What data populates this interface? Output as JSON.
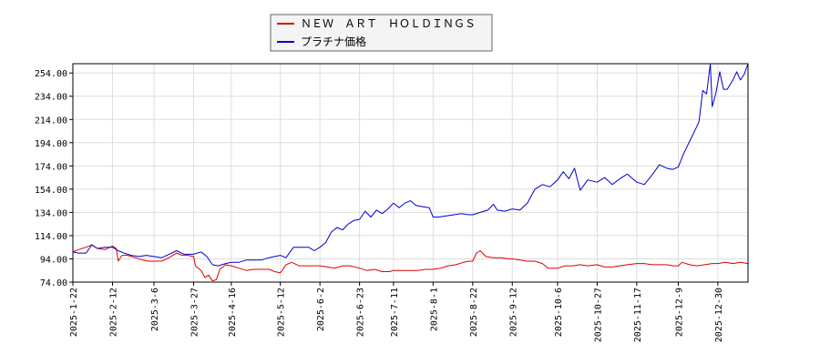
{
  "colors": {
    "series_red": "#dd0000",
    "series_blue": "#0000cc",
    "grid": "#dddddd",
    "axis": "#000000"
  },
  "chart_data": {
    "type": "line",
    "title": "",
    "xlabel": "",
    "ylabel": "",
    "ylim": [
      74,
      262
    ],
    "grid": true,
    "legend": "top-center",
    "y_ticks": [
      "74.00",
      "94.00",
      "114.00",
      "134.00",
      "154.00",
      "174.00",
      "194.00",
      "214.00",
      "234.00",
      "254.00"
    ],
    "x_ticks": [
      "2025-1-22",
      "2025-2-12",
      "2025-3-6",
      "2025-3-27",
      "2025-4-16",
      "2025-5-12",
      "2025-6-2",
      "2025-6-23",
      "2025-7-11",
      "2025-8-1",
      "2025-8-22",
      "2025-9-12",
      "2025-10-6",
      "2025-10-27",
      "2025-11-17",
      "2025-12-9",
      "2025-12-30"
    ],
    "x_range": [
      "2025-01-22",
      "2026-01-15"
    ],
    "series": [
      {
        "name": "ＮＥＷ　ＡＲＴ　ＨＯＬＤＩＮＧＳ",
        "color": "#dd0000",
        "points": [
          [
            "2025-01-22",
            100
          ],
          [
            "2025-01-25",
            102
          ],
          [
            "2025-01-29",
            104
          ],
          [
            "2025-02-01",
            106
          ],
          [
            "2025-02-04",
            103
          ],
          [
            "2025-02-08",
            102
          ],
          [
            "2025-02-12",
            105
          ],
          [
            "2025-02-14",
            103
          ],
          [
            "2025-02-15",
            92
          ],
          [
            "2025-02-17",
            97
          ],
          [
            "2025-02-20",
            97
          ],
          [
            "2025-02-24",
            95
          ],
          [
            "2025-02-28",
            93
          ],
          [
            "2025-03-03",
            92
          ],
          [
            "2025-03-06",
            92
          ],
          [
            "2025-03-10",
            92
          ],
          [
            "2025-03-14",
            95
          ],
          [
            "2025-03-18",
            99
          ],
          [
            "2025-03-21",
            97
          ],
          [
            "2025-03-24",
            97
          ],
          [
            "2025-03-27",
            96
          ],
          [
            "2025-03-28",
            88
          ],
          [
            "2025-03-31",
            84
          ],
          [
            "2025-04-02",
            78
          ],
          [
            "2025-04-04",
            80
          ],
          [
            "2025-04-06",
            75
          ],
          [
            "2025-04-08",
            76
          ],
          [
            "2025-04-10",
            85
          ],
          [
            "2025-04-13",
            89
          ],
          [
            "2025-04-16",
            88
          ],
          [
            "2025-04-20",
            86
          ],
          [
            "2025-04-24",
            84
          ],
          [
            "2025-04-28",
            85
          ],
          [
            "2025-05-02",
            85
          ],
          [
            "2025-05-06",
            85
          ],
          [
            "2025-05-09",
            83
          ],
          [
            "2025-05-12",
            82
          ],
          [
            "2025-05-15",
            89
          ],
          [
            "2025-05-18",
            91
          ],
          [
            "2025-05-22",
            88
          ],
          [
            "2025-05-26",
            88
          ],
          [
            "2025-05-30",
            88
          ],
          [
            "2025-06-02",
            88
          ],
          [
            "2025-06-06",
            87
          ],
          [
            "2025-06-10",
            86
          ],
          [
            "2025-06-14",
            88
          ],
          [
            "2025-06-18",
            88
          ],
          [
            "2025-06-23",
            86
          ],
          [
            "2025-06-27",
            84
          ],
          [
            "2025-07-01",
            85
          ],
          [
            "2025-07-05",
            83
          ],
          [
            "2025-07-09",
            83
          ],
          [
            "2025-07-11",
            84
          ],
          [
            "2025-07-15",
            84
          ],
          [
            "2025-07-20",
            84
          ],
          [
            "2025-07-24",
            84
          ],
          [
            "2025-07-28",
            85
          ],
          [
            "2025-08-01",
            85
          ],
          [
            "2025-08-05",
            86
          ],
          [
            "2025-08-09",
            88
          ],
          [
            "2025-08-13",
            89
          ],
          [
            "2025-08-17",
            91
          ],
          [
            "2025-08-20",
            92
          ],
          [
            "2025-08-22",
            92
          ],
          [
            "2025-08-24",
            99
          ],
          [
            "2025-08-26",
            101
          ],
          [
            "2025-08-29",
            96
          ],
          [
            "2025-09-02",
            95
          ],
          [
            "2025-09-06",
            95
          ],
          [
            "2025-09-10",
            94
          ],
          [
            "2025-09-12",
            94
          ],
          [
            "2025-09-16",
            93
          ],
          [
            "2025-09-20",
            92
          ],
          [
            "2025-09-24",
            92
          ],
          [
            "2025-09-28",
            90
          ],
          [
            "2025-10-01",
            86
          ],
          [
            "2025-10-06",
            86
          ],
          [
            "2025-10-10",
            88
          ],
          [
            "2025-10-14",
            88
          ],
          [
            "2025-10-18",
            89
          ],
          [
            "2025-10-22",
            88
          ],
          [
            "2025-10-27",
            89
          ],
          [
            "2025-10-31",
            87
          ],
          [
            "2025-11-04",
            87
          ],
          [
            "2025-11-08",
            88
          ],
          [
            "2025-11-12",
            89
          ],
          [
            "2025-11-17",
            90
          ],
          [
            "2025-11-21",
            90
          ],
          [
            "2025-11-25",
            89
          ],
          [
            "2025-11-29",
            89
          ],
          [
            "2025-12-03",
            89
          ],
          [
            "2025-12-06",
            88
          ],
          [
            "2025-12-09",
            88
          ],
          [
            "2025-12-11",
            91
          ],
          [
            "2025-12-15",
            89
          ],
          [
            "2025-12-19",
            88
          ],
          [
            "2025-12-23",
            89
          ],
          [
            "2025-12-27",
            90
          ],
          [
            "2025-12-30",
            90
          ],
          [
            "2026-01-03",
            91
          ],
          [
            "2026-01-07",
            90
          ],
          [
            "2026-01-11",
            91
          ],
          [
            "2026-01-15",
            90
          ]
        ]
      },
      {
        "name": "プラチナ価格",
        "color": "#0000cc",
        "points": [
          [
            "2025-01-22",
            100
          ],
          [
            "2025-01-25",
            99
          ],
          [
            "2025-01-29",
            99
          ],
          [
            "2025-02-01",
            106
          ],
          [
            "2025-02-04",
            103
          ],
          [
            "2025-02-08",
            104
          ],
          [
            "2025-02-12",
            104
          ],
          [
            "2025-02-15",
            101
          ],
          [
            "2025-02-18",
            99
          ],
          [
            "2025-02-22",
            97
          ],
          [
            "2025-02-26",
            96
          ],
          [
            "2025-03-02",
            97
          ],
          [
            "2025-03-06",
            96
          ],
          [
            "2025-03-10",
            95
          ],
          [
            "2025-03-14",
            98
          ],
          [
            "2025-03-18",
            101
          ],
          [
            "2025-03-22",
            98
          ],
          [
            "2025-03-27",
            98
          ],
          [
            "2025-03-31",
            100
          ],
          [
            "2025-04-03",
            96
          ],
          [
            "2025-04-06",
            89
          ],
          [
            "2025-04-09",
            88
          ],
          [
            "2025-04-13",
            90
          ],
          [
            "2025-04-16",
            91
          ],
          [
            "2025-04-20",
            91
          ],
          [
            "2025-04-24",
            93
          ],
          [
            "2025-04-28",
            93
          ],
          [
            "2025-05-02",
            93
          ],
          [
            "2025-05-06",
            95
          ],
          [
            "2025-05-09",
            96
          ],
          [
            "2025-05-12",
            97
          ],
          [
            "2025-05-15",
            95
          ],
          [
            "2025-05-19",
            104
          ],
          [
            "2025-05-23",
            104
          ],
          [
            "2025-05-27",
            104
          ],
          [
            "2025-05-30",
            101
          ],
          [
            "2025-06-02",
            104
          ],
          [
            "2025-06-05",
            108
          ],
          [
            "2025-06-08",
            117
          ],
          [
            "2025-06-11",
            121
          ],
          [
            "2025-06-14",
            119
          ],
          [
            "2025-06-17",
            124
          ],
          [
            "2025-06-20",
            127
          ],
          [
            "2025-06-23",
            128
          ],
          [
            "2025-06-26",
            135
          ],
          [
            "2025-06-29",
            130
          ],
          [
            "2025-07-02",
            136
          ],
          [
            "2025-07-05",
            133
          ],
          [
            "2025-07-08",
            137
          ],
          [
            "2025-07-11",
            142
          ],
          [
            "2025-07-14",
            138
          ],
          [
            "2025-07-17",
            142
          ],
          [
            "2025-07-20",
            144
          ],
          [
            "2025-07-23",
            140
          ],
          [
            "2025-07-26",
            139
          ],
          [
            "2025-07-30",
            138
          ],
          [
            "2025-08-01",
            130
          ],
          [
            "2025-08-04",
            130
          ],
          [
            "2025-08-08",
            131
          ],
          [
            "2025-08-12",
            132
          ],
          [
            "2025-08-16",
            133
          ],
          [
            "2025-08-20",
            132
          ],
          [
            "2025-08-22",
            132
          ],
          [
            "2025-08-26",
            134
          ],
          [
            "2025-08-30",
            136
          ],
          [
            "2025-09-02",
            141
          ],
          [
            "2025-09-04",
            136
          ],
          [
            "2025-09-08",
            135
          ],
          [
            "2025-09-12",
            137
          ],
          [
            "2025-09-16",
            136
          ],
          [
            "2025-09-20",
            142
          ],
          [
            "2025-09-24",
            154
          ],
          [
            "2025-09-28",
            158
          ],
          [
            "2025-10-02",
            156
          ],
          [
            "2025-10-06",
            162
          ],
          [
            "2025-10-09",
            169
          ],
          [
            "2025-10-12",
            163
          ],
          [
            "2025-10-15",
            172
          ],
          [
            "2025-10-18",
            153
          ],
          [
            "2025-10-22",
            162
          ],
          [
            "2025-10-27",
            160
          ],
          [
            "2025-10-31",
            164
          ],
          [
            "2025-11-04",
            158
          ],
          [
            "2025-11-08",
            163
          ],
          [
            "2025-11-12",
            167
          ],
          [
            "2025-11-17",
            160
          ],
          [
            "2025-11-21",
            158
          ],
          [
            "2025-11-25",
            166
          ],
          [
            "2025-11-29",
            175
          ],
          [
            "2025-12-03",
            172
          ],
          [
            "2025-12-06",
            171
          ],
          [
            "2025-12-09",
            173
          ],
          [
            "2025-12-12",
            185
          ],
          [
            "2025-12-15",
            195
          ],
          [
            "2025-12-18",
            205
          ],
          [
            "2025-12-20",
            212
          ],
          [
            "2025-12-22",
            239
          ],
          [
            "2025-12-24",
            236
          ],
          [
            "2025-12-26",
            262
          ],
          [
            "2025-12-27",
            225
          ],
          [
            "2025-12-29",
            237
          ],
          [
            "2025-12-31",
            255
          ],
          [
            "2026-01-02",
            240
          ],
          [
            "2026-01-04",
            240
          ],
          [
            "2026-01-07",
            248
          ],
          [
            "2026-01-09",
            255
          ],
          [
            "2026-01-11",
            248
          ],
          [
            "2026-01-13",
            253
          ],
          [
            "2026-01-15",
            262
          ]
        ]
      }
    ]
  }
}
